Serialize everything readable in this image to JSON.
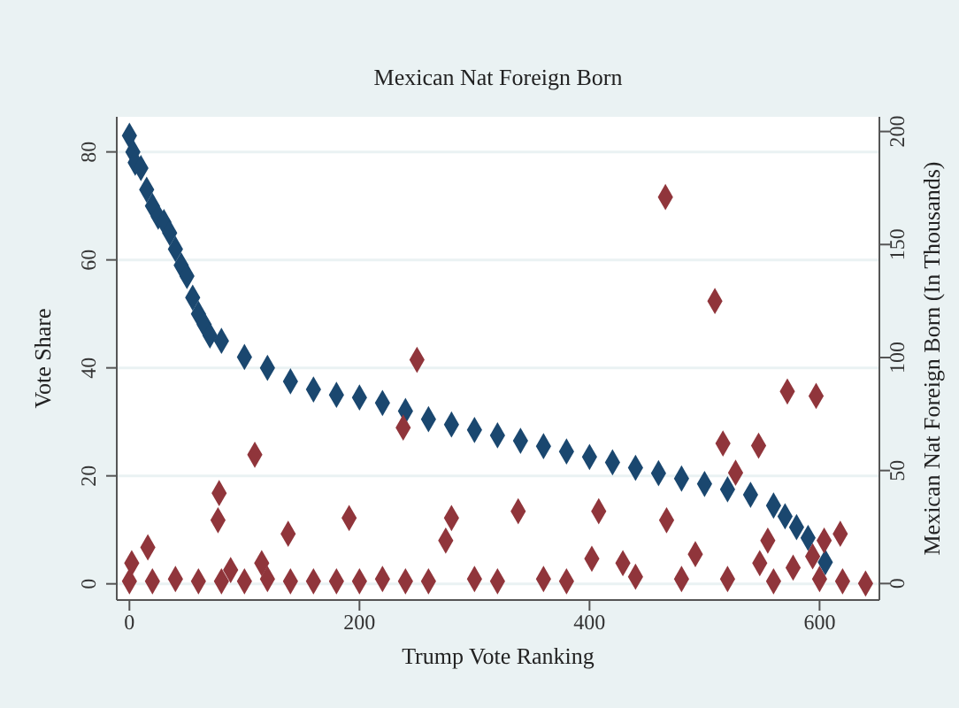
{
  "chart_data": {
    "type": "scatter",
    "title": "Mexican Nat Foreign Born",
    "xlabel": "Trump Vote Ranking",
    "ylabel": "Vote Share",
    "y2label": "Mexican Nat Foreign Born (In Thousands)",
    "xlim": [
      -11,
      652
    ],
    "xticks": [
      0,
      200,
      400,
      600
    ],
    "ylim": [
      -3,
      86.5
    ],
    "yticks": [
      0,
      20,
      40,
      60,
      80
    ],
    "y2lim": [
      -7.3,
      206.5
    ],
    "y2ticks": [
      0,
      50,
      100,
      150,
      200
    ],
    "grid": "y",
    "marker": "diamond",
    "series": [
      {
        "color": "#1a476f",
        "x": [
          0,
          3,
          5,
          10,
          15,
          20,
          25,
          30,
          35,
          40,
          45,
          50,
          55,
          60,
          65,
          70,
          80,
          100,
          120,
          140,
          160,
          180,
          200,
          220,
          240,
          260,
          280,
          300,
          320,
          340,
          360,
          380,
          400,
          420,
          440,
          460,
          480,
          500,
          520,
          540,
          560,
          570,
          580,
          590,
          605
        ],
        "values": [
          83,
          80,
          78,
          77,
          73,
          70,
          68,
          67,
          65,
          62,
          59,
          57,
          53,
          50,
          48,
          46,
          45,
          42,
          40,
          37.5,
          36,
          35,
          34.5,
          33.5,
          32,
          30.5,
          29.5,
          28.5,
          27.5,
          26.5,
          25.5,
          24.5,
          23.5,
          22.5,
          21.5,
          20.5,
          19.5,
          18.5,
          17.5,
          16.5,
          14.5,
          12.5,
          10.5,
          8.5,
          4
        ]
      },
      {
        "color": "#90353b",
        "axis": "y2",
        "x": [
          2,
          16,
          77,
          78,
          88,
          109,
          115,
          138,
          191,
          238,
          250,
          275,
          280,
          338,
          402,
          408,
          429,
          466,
          467,
          492,
          509,
          516,
          527,
          547,
          548,
          555,
          572,
          577,
          594,
          597,
          604,
          618,
          0,
          20,
          40,
          60,
          80,
          100,
          120,
          140,
          160,
          180,
          200,
          220,
          240,
          260,
          300,
          320,
          360,
          380,
          440,
          480,
          520,
          560,
          600,
          620,
          640
        ],
        "values": [
          9,
          16,
          28,
          40,
          6,
          57,
          9,
          22,
          29,
          69,
          99,
          19,
          29,
          32,
          11,
          32,
          9,
          171,
          28,
          13,
          125,
          62,
          49,
          61,
          9,
          19,
          85,
          7,
          12,
          83,
          19,
          22,
          1,
          1,
          2,
          1,
          1,
          1,
          2,
          1,
          1,
          1,
          1,
          2,
          1,
          1,
          2,
          1,
          2,
          1,
          3,
          2,
          2,
          1,
          2,
          1,
          0
        ]
      }
    ]
  }
}
